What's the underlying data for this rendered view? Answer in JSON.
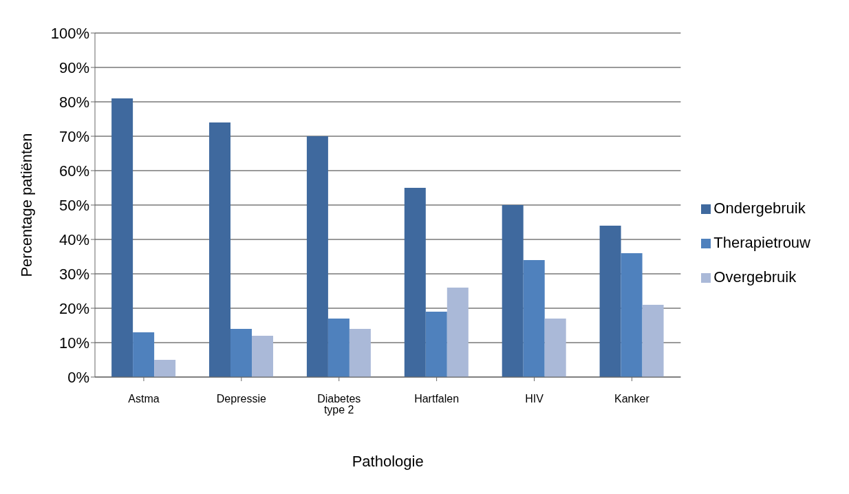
{
  "chart_data": {
    "type": "bar",
    "xlabel": "Pathologie",
    "ylabel": "Percentage patiënten",
    "categories": [
      "Astma",
      "Depressie",
      "Diabetes type 2",
      "Hartfalen",
      "HIV",
      "Kanker"
    ],
    "series": [
      {
        "name": "Ondergebruik",
        "color": "#3f699e",
        "values": [
          81,
          74,
          70,
          55,
          50,
          44
        ]
      },
      {
        "name": "Therapietrouw",
        "color": "#4f81bd",
        "values": [
          13,
          14,
          17,
          19,
          34,
          36
        ]
      },
      {
        "name": "Overgebruik",
        "color": "#aab9d8",
        "values": [
          5,
          12,
          14,
          26,
          17,
          21
        ]
      }
    ],
    "ylim": [
      0,
      100
    ],
    "yticks": [
      {
        "value": 0,
        "label": "0%"
      },
      {
        "value": 10,
        "label": "10%"
      },
      {
        "value": 20,
        "label": "20%"
      },
      {
        "value": 30,
        "label": "30%"
      },
      {
        "value": 40,
        "label": "40%"
      },
      {
        "value": 50,
        "label": "50%"
      },
      {
        "value": 60,
        "label": "60%"
      },
      {
        "value": 70,
        "label": "70%"
      },
      {
        "value": 80,
        "label": "80%"
      },
      {
        "value": 90,
        "label": "90%"
      },
      {
        "value": 100,
        "label": "100%"
      }
    ],
    "grid": "y",
    "legend": "right"
  }
}
